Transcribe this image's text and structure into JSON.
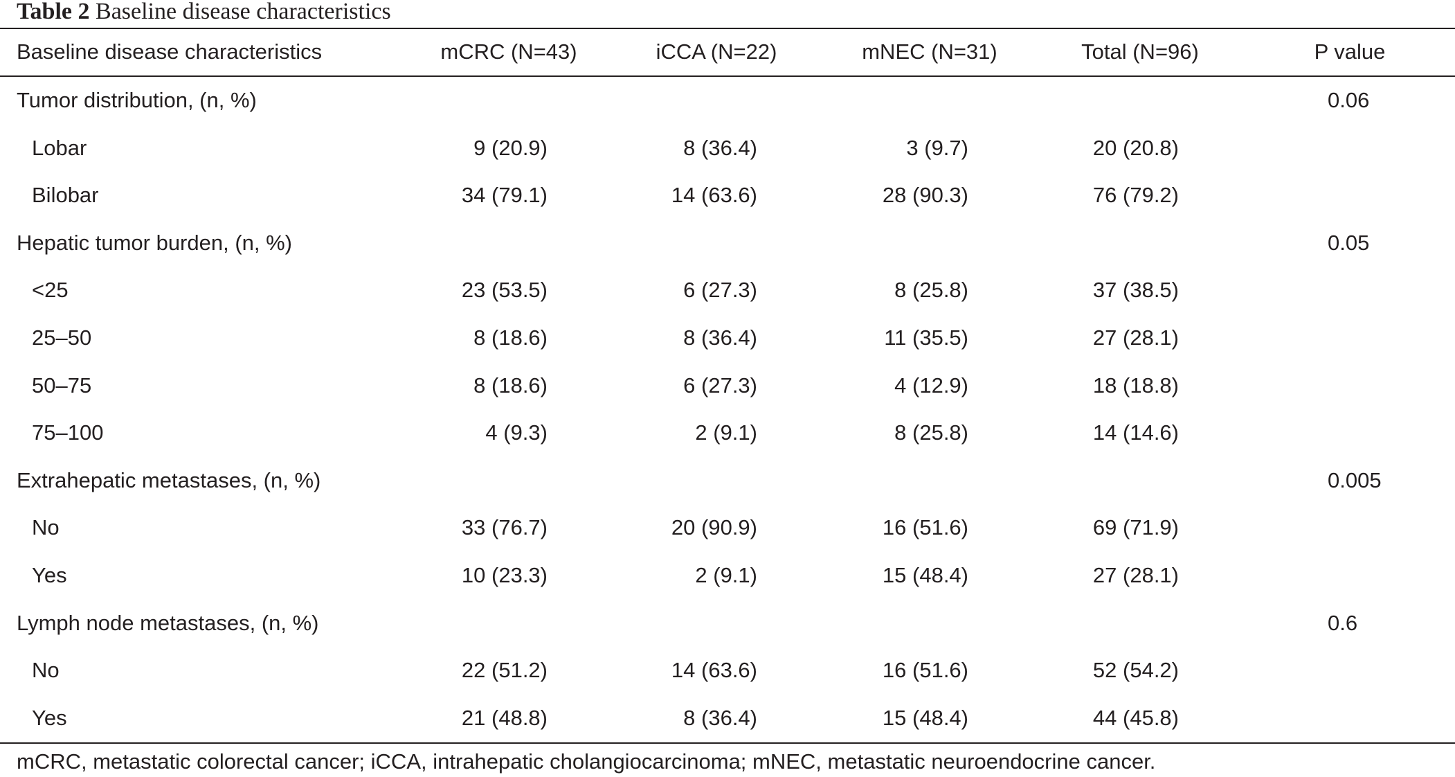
{
  "caption": {
    "label": "Table 2",
    "title": "Baseline disease characteristics"
  },
  "table": {
    "headers": {
      "characteristic": "Baseline disease characteristics",
      "mcrc": "mCRC (N=43)",
      "icca": "iCCA (N=22)",
      "mnec": "mNEC (N=31)",
      "total": "Total (N=96)",
      "p_value": "P value"
    },
    "rows": [
      {
        "label": "Tumor distribution, (n, %)",
        "group": true,
        "mcrc": "",
        "icca": "",
        "mnec": "",
        "total": "",
        "p": "0.06"
      },
      {
        "label": "Lobar",
        "group": false,
        "mcrc": "9 (20.9)",
        "icca": "8 (36.4)",
        "mnec": "3 (9.7)",
        "total": "20 (20.8)",
        "p": ""
      },
      {
        "label": "Bilobar",
        "group": false,
        "mcrc": "34 (79.1)",
        "icca": "14 (63.6)",
        "mnec": "28 (90.3)",
        "total": "76 (79.2)",
        "p": ""
      },
      {
        "label": "Hepatic tumor burden, (n, %)",
        "group": true,
        "mcrc": "",
        "icca": "",
        "mnec": "",
        "total": "",
        "p": "0.05"
      },
      {
        "label": "<25",
        "group": false,
        "mcrc": "23 (53.5)",
        "icca": "6 (27.3)",
        "mnec": "8 (25.8)",
        "total": "37 (38.5)",
        "p": ""
      },
      {
        "label": "25–50",
        "group": false,
        "mcrc": "8 (18.6)",
        "icca": "8 (36.4)",
        "mnec": "11 (35.5)",
        "total": "27 (28.1)",
        "p": ""
      },
      {
        "label": "50–75",
        "group": false,
        "mcrc": "8 (18.6)",
        "icca": "6 (27.3)",
        "mnec": "4 (12.9)",
        "total": "18 (18.8)",
        "p": ""
      },
      {
        "label": "75–100",
        "group": false,
        "mcrc": "4 (9.3)",
        "icca": "2 (9.1)",
        "mnec": "8 (25.8)",
        "total": "14 (14.6)",
        "p": ""
      },
      {
        "label": "Extrahepatic metastases, (n, %)",
        "group": true,
        "mcrc": "",
        "icca": "",
        "mnec": "",
        "total": "",
        "p": "0.005"
      },
      {
        "label": "No",
        "group": false,
        "mcrc": "33 (76.7)",
        "icca": "20 (90.9)",
        "mnec": "16 (51.6)",
        "total": "69 (71.9)",
        "p": ""
      },
      {
        "label": "Yes",
        "group": false,
        "mcrc": "10 (23.3)",
        "icca": "2 (9.1)",
        "mnec": "15 (48.4)",
        "total": "27 (28.1)",
        "p": ""
      },
      {
        "label": "Lymph node metastases, (n, %)",
        "group": true,
        "mcrc": "",
        "icca": "",
        "mnec": "",
        "total": "",
        "p": "0.6"
      },
      {
        "label": "No",
        "group": false,
        "mcrc": "22 (51.2)",
        "icca": "14 (63.6)",
        "mnec": "16 (51.6)",
        "total": "52 (54.2)",
        "p": ""
      },
      {
        "label": "Yes",
        "group": false,
        "mcrc": "21 (48.8)",
        "icca": "8 (36.4)",
        "mnec": "15 (48.4)",
        "total": "44 (45.8)",
        "p": ""
      }
    ]
  },
  "footnote": "mCRC, metastatic colorectal cancer; iCCA, intrahepatic cholangiocarcinoma; mNEC, metastatic neuroendocrine cancer."
}
